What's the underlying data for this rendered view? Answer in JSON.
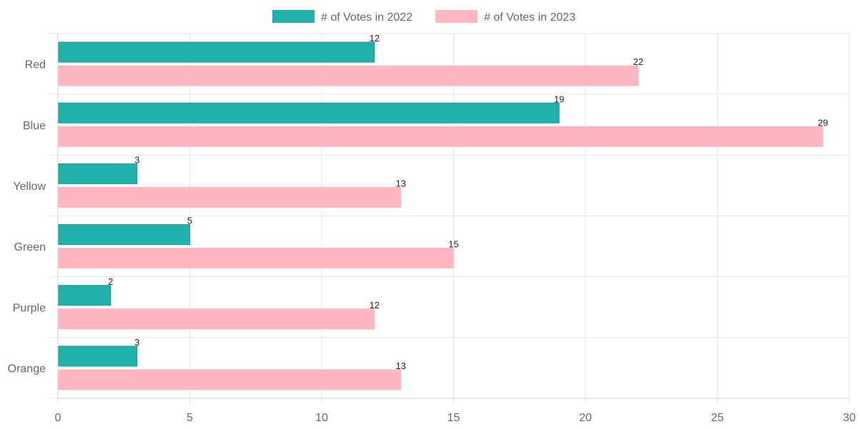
{
  "chart_data": {
    "type": "bar",
    "orientation": "horizontal",
    "categories": [
      "Red",
      "Blue",
      "Yellow",
      "Green",
      "Purple",
      "Orange"
    ],
    "series": [
      {
        "name": "# of Votes in 2022",
        "values": [
          12,
          19,
          3,
          5,
          2,
          3
        ],
        "color": "#20b2aa"
      },
      {
        "name": "# of Votes in 2023",
        "values": [
          22,
          29,
          13,
          15,
          12,
          13
        ],
        "color": "#ffb6c1"
      }
    ],
    "xlim": [
      0,
      30
    ],
    "xticks": [
      "0",
      "5",
      "10",
      "15",
      "20",
      "25",
      "30"
    ],
    "grid": true,
    "legend_position": "top",
    "data_labels": true
  }
}
